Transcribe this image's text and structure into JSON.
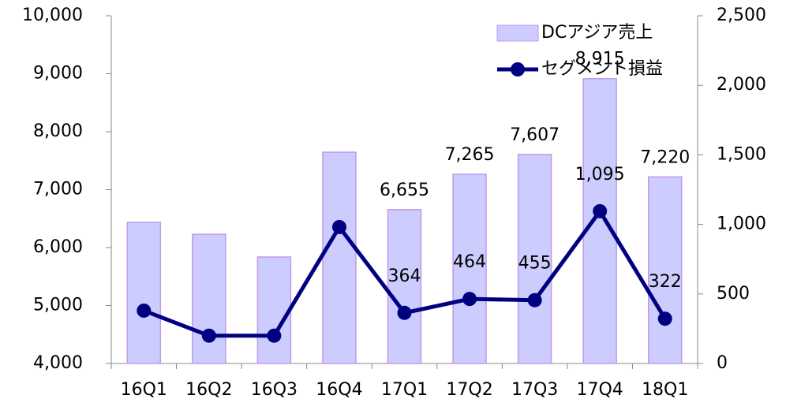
{
  "chart_data": {
    "type": "bar_line",
    "categories": [
      "16Q1",
      "16Q2",
      "16Q3",
      "16Q4",
      "17Q1",
      "17Q2",
      "17Q3",
      "17Q4",
      "18Q1"
    ],
    "series": [
      {
        "name": "DCアジア売上",
        "type": "bar",
        "color": "#ccccff",
        "values": [
          6435,
          6230,
          5837,
          7646,
          6655,
          7265,
          7607,
          8915,
          7220
        ],
        "value_labels": [
          null,
          null,
          null,
          null,
          "6,655",
          "7,265",
          "7,607",
          "8,915",
          "7,220"
        ]
      },
      {
        "name": "セグメント損益",
        "type": "line",
        "axis": "y2",
        "color": "#000080",
        "values": [
          380,
          200,
          200,
          981,
          364,
          464,
          455,
          1095,
          322
        ],
        "value_labels": [
          null,
          null,
          null,
          null,
          "364",
          "464",
          "455",
          "1,095",
          "322"
        ]
      }
    ],
    "ylim": [
      4000,
      10000
    ],
    "yticks": [
      {
        "value": 4000,
        "label": "4,000"
      },
      {
        "value": 5000,
        "label": "5,000"
      },
      {
        "value": 6000,
        "label": "6,000"
      },
      {
        "value": 7000,
        "label": "7,000"
      },
      {
        "value": 8000,
        "label": "8,000"
      },
      {
        "value": 9000,
        "label": "9,000"
      },
      {
        "value": 10000,
        "label": "10,000"
      }
    ],
    "y2lim": [
      0,
      2500
    ],
    "y2ticks": [
      0,
      500,
      {
        "value": 1000,
        "label": "1,000"
      },
      {
        "value": 1500,
        "label": "1,500"
      },
      {
        "value": 2000,
        "label": "2,000"
      },
      {
        "value": 2500,
        "label": "2,500"
      }
    ],
    "legend": "top-right"
  }
}
